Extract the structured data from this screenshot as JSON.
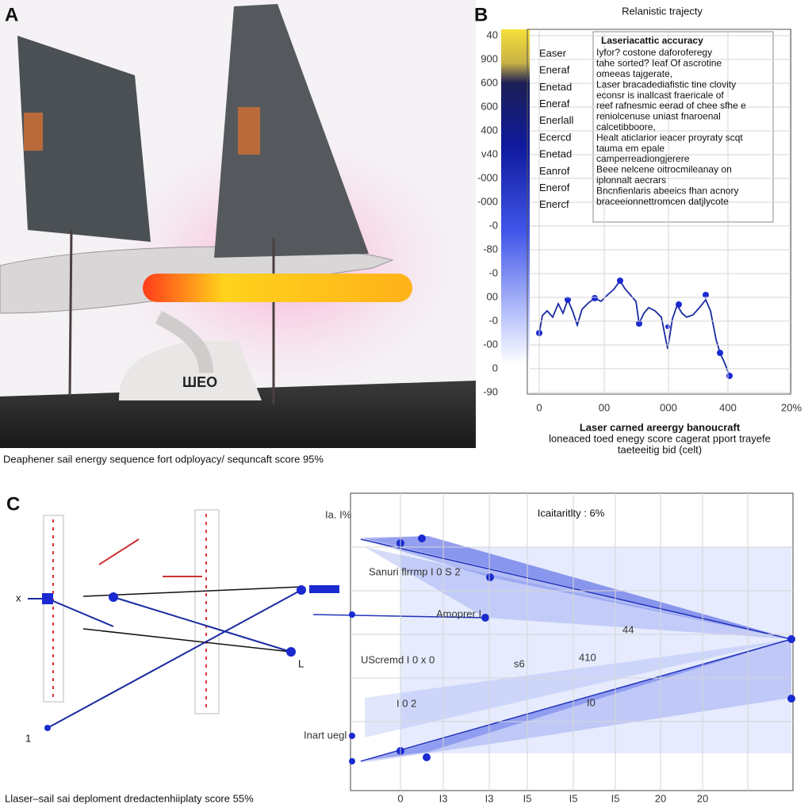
{
  "panels": {
    "a": {
      "label": "A",
      "caption": "Deaphener sail energy sequence fort odployacy/ sequncaft score 95%"
    },
    "b": {
      "label": "B",
      "title": "Relanistic trajecty",
      "yticks": [
        "40",
        "900",
        "600",
        "600",
        "400",
        "v40",
        "-000",
        "-000",
        "-0",
        "-80",
        "-0",
        "00",
        "-0",
        "-00",
        "0",
        "-90"
      ],
      "xticks": [
        "0",
        "00",
        "000",
        "400",
        "20%"
      ],
      "legend": [
        "Easer",
        "Eneraf",
        "Enetad",
        "Eneraf",
        "Enerlall",
        "Ecercd",
        "Enetad",
        "Eanrof",
        "Enerof",
        "Enercf"
      ],
      "note": {
        "title": "Laseriacattic accuracy",
        "lines": [
          "Iyfor? costone daforoferegy",
          "tahe sorted? Ieaf Of ascrotine",
          "omeeas tajgerate,",
          "Laser bracadediafistic  tine clovity",
          "econsr is inallcast fraericale of",
          "reef rafnesmic eerad of chee sfhe e",
          "reniolcenuse uniast fnaroenal",
          "calcetibboore,",
          "Healt aticlarior ieacer proyraty scqt",
          "tauma em epale",
          "camperreadiongjerere",
          "Beee nelcene oitrocmileanay on",
          "iplonnalt aecrars",
          "Bncnfienlaris abeeics fhan acnory",
          "braceeionnettromcen datjlycote"
        ]
      },
      "xlabel": [
        "Laser carned areergy banoucraft",
        "loneaced toed enegy score  cagerat pport trayefe",
        "taeteeitig bid (celt)"
      ]
    },
    "c": {
      "label": "C",
      "marker_x": "x",
      "marker_l": "L",
      "marker_one": "1",
      "caption": "Llaser–sail sai deploment dredactenhiiplaty score 55%",
      "chart": {
        "title": "Icaitaritlty : 6%",
        "labels": [
          "Ia. I%",
          "Sanuri flrrmp I 0 S 2",
          "Amoprer I",
          "UScremd I 0 x 0",
          "I 0 2",
          "Inart uegl"
        ],
        "xticks": [
          "0",
          "I3",
          "I3",
          "I5",
          "I5",
          "I5",
          "20",
          "20"
        ],
        "annotations": [
          "44",
          "410",
          "s6",
          "I0"
        ]
      }
    }
  }
}
